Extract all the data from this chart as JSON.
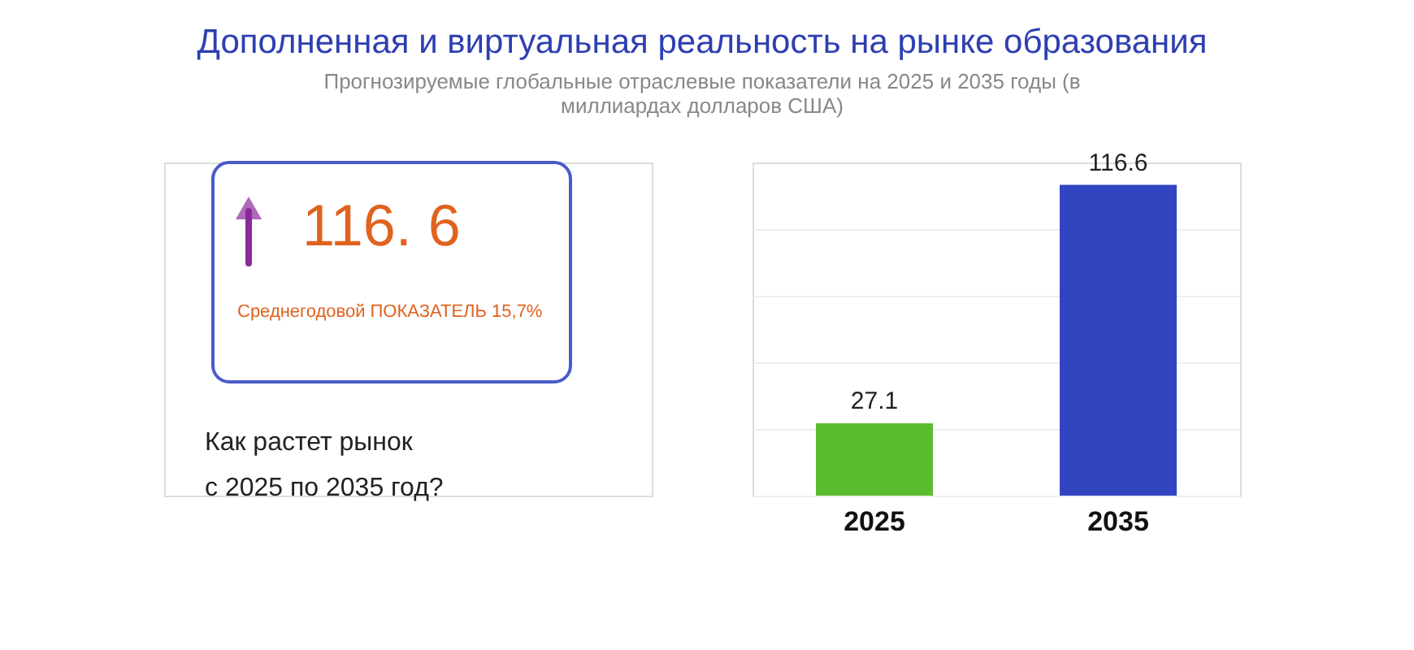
{
  "chart_data": {
    "type": "bar",
    "title": "Дополненная и виртуальная реальность на рынке образования",
    "subtitle": [
      "Прогнозируемые глобальные отраслевые показатели на 2025 и 2035 годы (в",
      "миллиардах долларов США)"
    ],
    "categories": [
      "2025",
      "2035"
    ],
    "values": [
      27.1,
      116.6
    ],
    "colors": [
      "#5bbb2e",
      "#3245c0"
    ],
    "data_labels": true,
    "ylim": [
      0,
      125
    ],
    "yticks": [
      {
        "value": 0,
        "label": null
      },
      {
        "value": 25,
        "label": null
      },
      {
        "value": 50,
        "label": null
      },
      {
        "value": 75,
        "label": null
      },
      {
        "value": 100,
        "label": null
      }
    ],
    "grid": "y",
    "tick_labels": "x",
    "annotations": [
      "116. 6",
      "Среднегодовой ПОКАЗАТЕЛЬ 15,7%",
      "Как растет рынок",
      "с 2025 по 2035 год?"
    ]
  }
}
